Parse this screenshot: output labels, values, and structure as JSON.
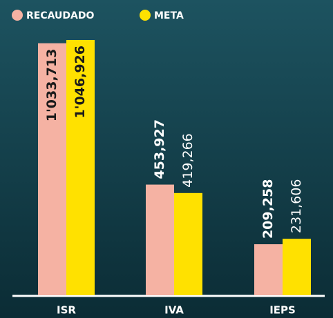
{
  "chart_data": {
    "type": "bar",
    "categories": [
      "ISR",
      "IVA",
      "IEPS"
    ],
    "series": [
      {
        "name": "RECAUDADO",
        "color": "#f5b2a3",
        "values": [
          1033713,
          453927,
          209258
        ],
        "value_labels": [
          "1'033,713",
          "453,927",
          "209,258"
        ]
      },
      {
        "name": "META",
        "color": "#ffe100",
        "values": [
          1046926,
          419266,
          231606
        ],
        "value_labels": [
          "1'046,926",
          "419,266",
          "231,606"
        ]
      }
    ]
  }
}
